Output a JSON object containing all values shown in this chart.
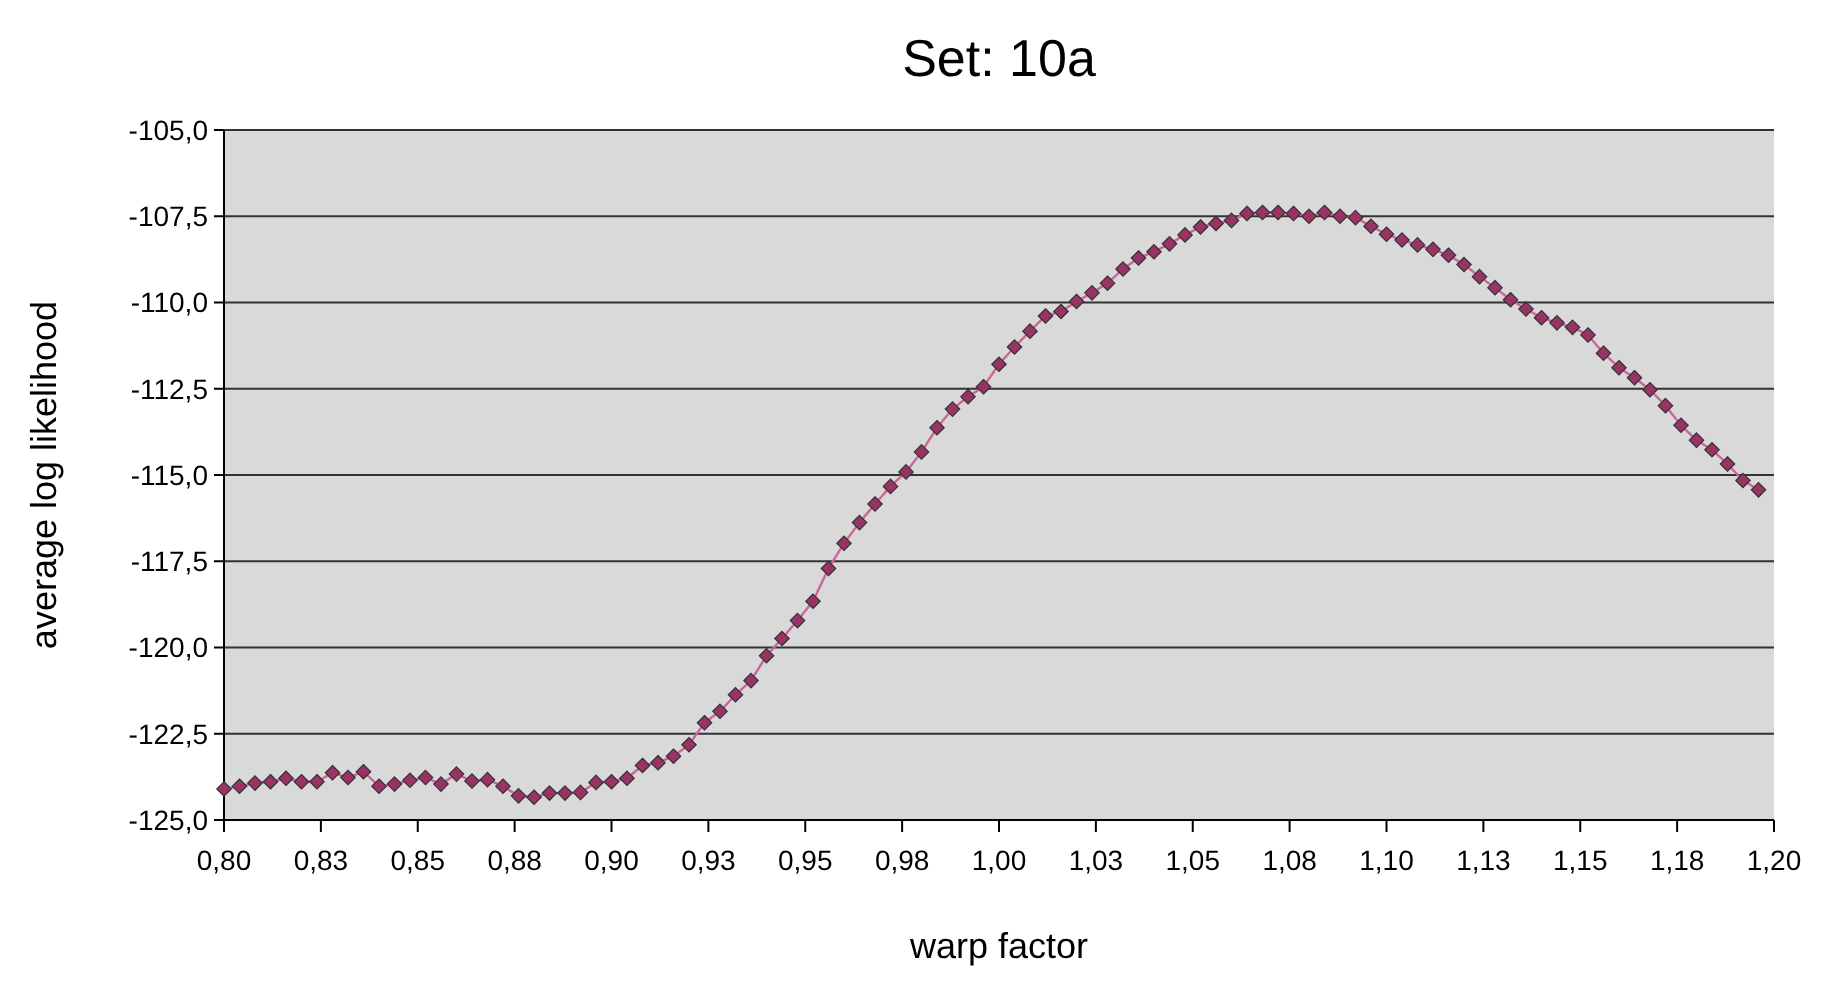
{
  "chart_data": {
    "type": "line",
    "title": "Set: 10a",
    "xlabel": "warp factor",
    "ylabel": "average log likelihood",
    "x": [
      0.8,
      0.804,
      0.808,
      0.812,
      0.816,
      0.82,
      0.824,
      0.828,
      0.832,
      0.836,
      0.84,
      0.844,
      0.848,
      0.852,
      0.856,
      0.86,
      0.864,
      0.868,
      0.872,
      0.876,
      0.88,
      0.884,
      0.888,
      0.892,
      0.896,
      0.9,
      0.904,
      0.908,
      0.912,
      0.916,
      0.92,
      0.924,
      0.928,
      0.932,
      0.936,
      0.94,
      0.944,
      0.948,
      0.952,
      0.956,
      0.96,
      0.964,
      0.968,
      0.972,
      0.976,
      0.98,
      0.984,
      0.988,
      0.992,
      0.996,
      1.0,
      1.004,
      1.008,
      1.012,
      1.016,
      1.02,
      1.024,
      1.028,
      1.032,
      1.036,
      1.04,
      1.044,
      1.048,
      1.052,
      1.056,
      1.06,
      1.064,
      1.068,
      1.072,
      1.076,
      1.08,
      1.084,
      1.088,
      1.092,
      1.096,
      1.1,
      1.104,
      1.108,
      1.112,
      1.116,
      1.12,
      1.124,
      1.128,
      1.132,
      1.136,
      1.14,
      1.144,
      1.148,
      1.152,
      1.156,
      1.16,
      1.164,
      1.168,
      1.172,
      1.176,
      1.18,
      1.184,
      1.188,
      1.192,
      1.196
    ],
    "series": [
      {
        "color": "#993366",
        "values": [
          -124.1,
          -124.02,
          -123.93,
          -123.89,
          -123.79,
          -123.89,
          -123.89,
          -123.63,
          -123.77,
          -123.6,
          -124.02,
          -123.96,
          -123.85,
          -123.77,
          -123.96,
          -123.67,
          -123.87,
          -123.83,
          -124.02,
          -124.3,
          -124.34,
          -124.22,
          -124.22,
          -124.2,
          -123.91,
          -123.89,
          -123.79,
          -123.42,
          -123.34,
          -123.15,
          -122.82,
          -122.18,
          -121.85,
          -121.37,
          -120.96,
          -120.24,
          -119.74,
          -119.22,
          -118.66,
          -117.71,
          -116.98,
          -116.38,
          -115.84,
          -115.33,
          -114.91,
          -114.33,
          -113.63,
          -113.09,
          -112.73,
          -112.44,
          -111.79,
          -111.29,
          -110.83,
          -110.39,
          -110.26,
          -109.97,
          -109.72,
          -109.44,
          -109.03,
          -108.71,
          -108.53,
          -108.3,
          -108.04,
          -107.81,
          -107.71,
          -107.62,
          -107.42,
          -107.39,
          -107.39,
          -107.42,
          -107.5,
          -107.39,
          -107.5,
          -107.54,
          -107.79,
          -108.02,
          -108.19,
          -108.33,
          -108.46,
          -108.63,
          -108.9,
          -109.25,
          -109.57,
          -109.92,
          -110.19,
          -110.44,
          -110.59,
          -110.72,
          -110.94,
          -111.47,
          -111.89,
          -112.18,
          -112.53,
          -112.99,
          -113.56,
          -113.99,
          -114.27,
          -114.68,
          -115.16,
          -115.43
        ]
      }
    ],
    "xlim": [
      0.8,
      1.2
    ],
    "xticks": [
      {
        "value": 0.8,
        "label": "0,80"
      },
      {
        "value": 0.825,
        "label": "0,83"
      },
      {
        "value": 0.85,
        "label": "0,85"
      },
      {
        "value": 0.875,
        "label": "0,88"
      },
      {
        "value": 0.9,
        "label": "0,90"
      },
      {
        "value": 0.925,
        "label": "0,93"
      },
      {
        "value": 0.95,
        "label": "0,95"
      },
      {
        "value": 0.975,
        "label": "0,98"
      },
      {
        "value": 1.0,
        "label": "1,00"
      },
      {
        "value": 1.025,
        "label": "1,03"
      },
      {
        "value": 1.05,
        "label": "1,05"
      },
      {
        "value": 1.075,
        "label": "1,08"
      },
      {
        "value": 1.1,
        "label": "1,10"
      },
      {
        "value": 1.125,
        "label": "1,13"
      },
      {
        "value": 1.15,
        "label": "1,15"
      },
      {
        "value": 1.175,
        "label": "1,18"
      },
      {
        "value": 1.2,
        "label": "1,20"
      }
    ],
    "ylim": [
      -125,
      -105
    ],
    "yticks": [
      {
        "value": -125,
        "label": "-125,0"
      },
      {
        "value": -122.5,
        "label": "-122,5"
      },
      {
        "value": -120,
        "label": "-120,0"
      },
      {
        "value": -117.5,
        "label": "-117,5"
      },
      {
        "value": -115,
        "label": "-115,0"
      },
      {
        "value": -112.5,
        "label": "-112,5"
      },
      {
        "value": -110,
        "label": "-110,0"
      },
      {
        "value": -107.5,
        "label": "-107,5"
      },
      {
        "value": -105,
        "label": "-105,0"
      }
    ],
    "grid": "y",
    "marker": "diamond",
    "line_style": "solid"
  }
}
